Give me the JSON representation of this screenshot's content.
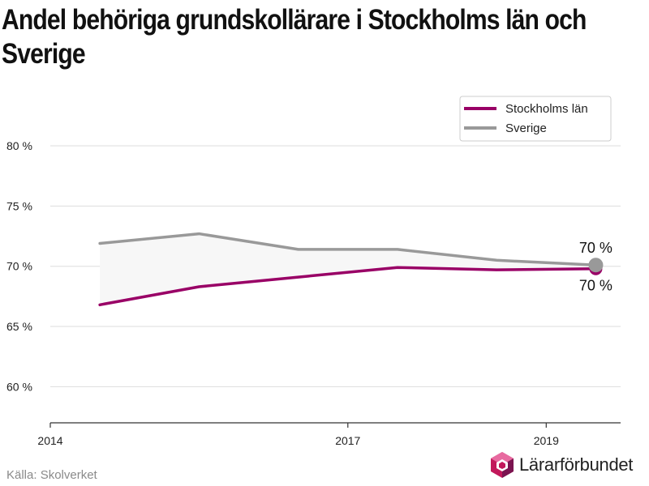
{
  "title": "Andel behöriga grundskollärare i Stockholms län och Sverige",
  "source": "Källa: Skolverket",
  "brand": "Lärarförbundet",
  "colors": {
    "stockholm": "#990066",
    "sverige": "#999999",
    "gap_fill": "#f7f7f7",
    "grid": "#dddddd"
  },
  "chart_data": {
    "type": "line",
    "title": "Andel behöriga grundskollärare i Stockholms län och Sverige",
    "x_ticks": [
      2014,
      2017,
      2019
    ],
    "y_ticks": [
      60,
      65,
      70,
      75,
      80
    ],
    "y_tick_labels": [
      "60 %",
      "65 %",
      "70 %",
      "75 %",
      "80 %"
    ],
    "xlim": [
      2014,
      2019.75
    ],
    "ylim": [
      57,
      83.5
    ],
    "grid": true,
    "legend_position": "top-right",
    "shaded_gap_between_series": true,
    "series": [
      {
        "name": "Stockholms län",
        "color": "#990066",
        "x": [
          2014.5,
          2015.5,
          2016.5,
          2017.5,
          2018.5,
          2019.5
        ],
        "y": [
          66.8,
          68.3,
          69.1,
          69.9,
          69.7,
          69.8
        ],
        "end_label": "70 %"
      },
      {
        "name": "Sverige",
        "color": "#999999",
        "x": [
          2014.5,
          2015.5,
          2016.5,
          2017.5,
          2018.5,
          2019.5
        ],
        "y": [
          71.9,
          72.7,
          71.4,
          71.4,
          70.5,
          70.1
        ],
        "end_label": "70 %"
      }
    ]
  }
}
